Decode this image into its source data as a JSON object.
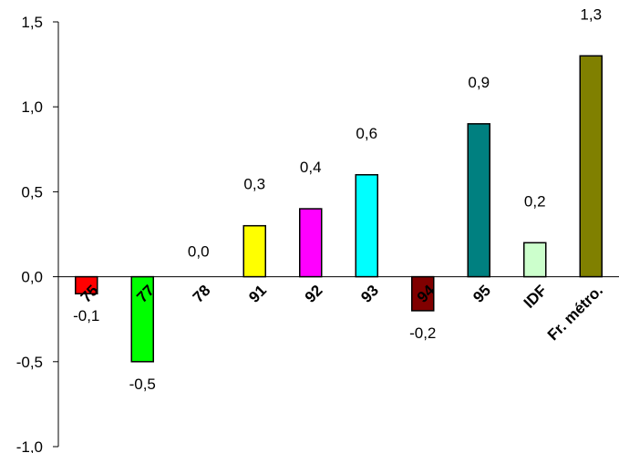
{
  "chart_data": {
    "type": "bar",
    "categories": [
      "75",
      "77",
      "78",
      "91",
      "92",
      "93",
      "94",
      "95",
      "IDF",
      "Fr. métro."
    ],
    "values": [
      -0.1,
      -0.5,
      0.0,
      0.3,
      0.4,
      0.6,
      -0.2,
      0.9,
      0.2,
      1.3
    ],
    "value_labels": [
      "-0,1",
      "-0,5",
      "0,0",
      "0,3",
      "0,4",
      "0,6",
      "-0,2",
      "0,9",
      "0,2",
      "1,3"
    ],
    "colors": [
      "#ff0000",
      "#00ff00",
      "#ffffff",
      "#ffff00",
      "#ff00ff",
      "#00ffff",
      "#800000",
      "#008080",
      "#ccffcc",
      "#808000"
    ],
    "y_ticks": [
      -1.0,
      -0.5,
      0.0,
      0.5,
      1.0,
      1.5
    ],
    "y_tick_labels": [
      "-1,0",
      "-0,5",
      "0,0",
      "0,5",
      "1,0",
      "1,5"
    ],
    "ylim": [
      -1.0,
      1.5
    ],
    "title": "",
    "xlabel": "",
    "ylabel": "",
    "grid": false,
    "legend": "none"
  }
}
